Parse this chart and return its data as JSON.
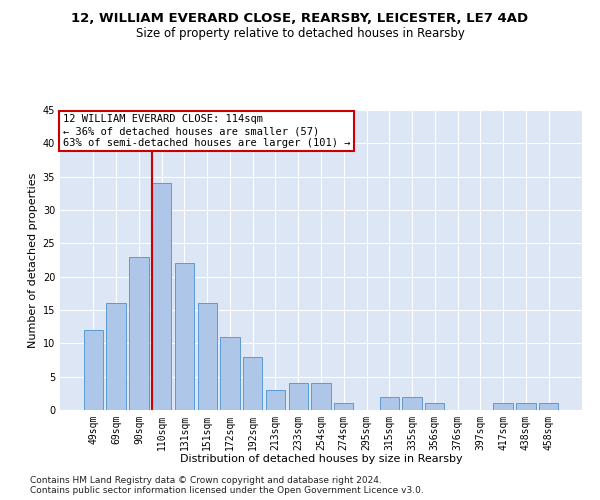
{
  "title1": "12, WILLIAM EVERARD CLOSE, REARSBY, LEICESTER, LE7 4AD",
  "title2": "Size of property relative to detached houses in Rearsby",
  "xlabel": "Distribution of detached houses by size in Rearsby",
  "ylabel": "Number of detached properties",
  "categories": [
    "49sqm",
    "69sqm",
    "90sqm",
    "110sqm",
    "131sqm",
    "151sqm",
    "172sqm",
    "192sqm",
    "213sqm",
    "233sqm",
    "254sqm",
    "274sqm",
    "295sqm",
    "315sqm",
    "335sqm",
    "356sqm",
    "376sqm",
    "397sqm",
    "417sqm",
    "438sqm",
    "458sqm"
  ],
  "values": [
    12,
    16,
    23,
    34,
    22,
    16,
    11,
    8,
    3,
    4,
    4,
    1,
    0,
    2,
    2,
    1,
    0,
    0,
    1,
    1,
    1
  ],
  "bar_color": "#aec6e8",
  "bar_edge_color": "#5b9bd5",
  "annotation_text": "12 WILLIAM EVERARD CLOSE: 114sqm\n← 36% of detached houses are smaller (57)\n63% of semi-detached houses are larger (101) →",
  "annotation_box_color": "#ffffff",
  "annotation_box_edge": "#cc0000",
  "red_line_color": "#cc0000",
  "ylim": [
    0,
    45
  ],
  "yticks": [
    0,
    5,
    10,
    15,
    20,
    25,
    30,
    35,
    40,
    45
  ],
  "bg_color": "#dce6f5",
  "footnote1": "Contains HM Land Registry data © Crown copyright and database right 2024.",
  "footnote2": "Contains public sector information licensed under the Open Government Licence v3.0.",
  "title1_fontsize": 9.5,
  "title2_fontsize": 8.5,
  "xlabel_fontsize": 8,
  "ylabel_fontsize": 8,
  "tick_fontsize": 7,
  "annotation_fontsize": 7.5,
  "footnote_fontsize": 6.5
}
